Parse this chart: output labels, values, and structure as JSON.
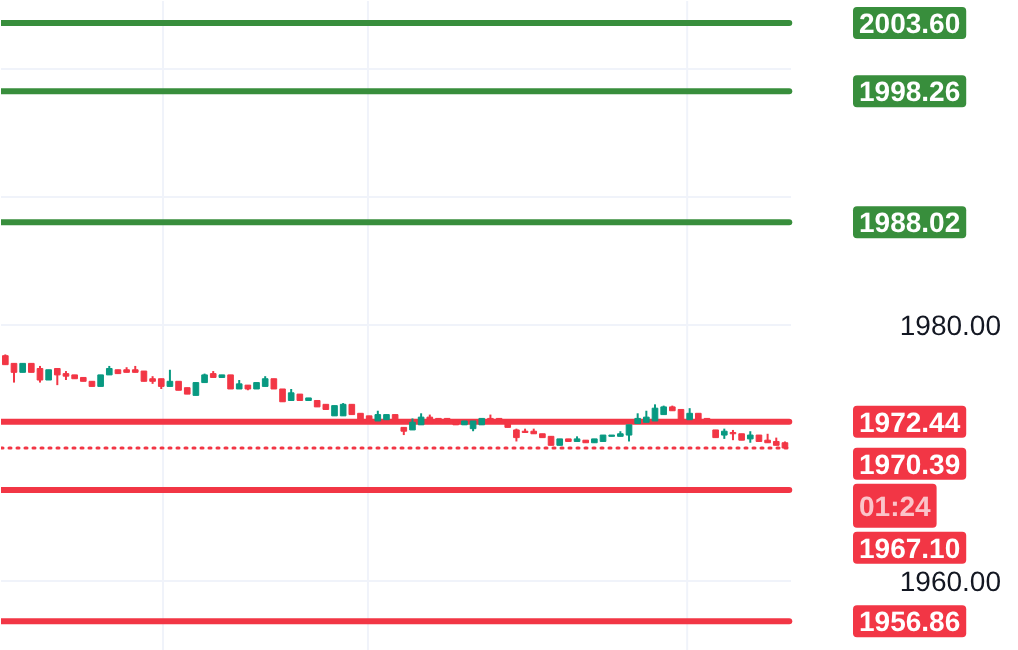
{
  "chart_data": {
    "type": "candlestick",
    "categories": [
      null,
      null,
      null,
      null,
      null,
      null,
      null,
      null,
      null,
      null,
      null,
      null,
      null,
      null,
      null,
      null,
      null,
      null,
      null,
      null,
      null,
      null,
      null,
      null,
      null,
      null,
      null,
      null,
      null,
      null,
      null,
      null,
      null,
      null,
      null,
      null,
      null,
      null,
      null,
      null,
      null,
      null,
      null,
      null,
      null,
      null,
      null,
      null,
      null,
      null,
      null,
      null,
      null,
      null,
      null,
      null,
      null,
      null,
      null,
      null,
      null,
      null,
      null,
      null,
      null,
      null,
      null,
      null,
      null,
      null,
      null,
      null,
      null,
      null,
      null,
      null,
      null,
      null,
      null,
      null,
      null,
      null,
      null,
      null,
      null,
      null,
      null,
      null,
      null,
      null,
      null
    ],
    "ohlc": [
      [
        1977.6,
        1977.7,
        1976.9,
        1976.9
      ],
      [
        1977.0,
        1977.0,
        1975.5,
        1976.3
      ],
      [
        1976.3,
        1977.0,
        1976.3,
        1977.0
      ],
      [
        1977.0,
        1977.0,
        1976.3,
        1976.3
      ],
      [
        1976.6,
        1976.8,
        1975.5,
        1975.7
      ],
      [
        1975.7,
        1976.5,
        1975.7,
        1976.5
      ],
      [
        1976.6,
        1976.6,
        1975.3,
        1976.1
      ],
      [
        1976.2,
        1976.4,
        1975.7,
        1976.0
      ],
      [
        1976.1,
        1976.1,
        1975.8,
        1975.8
      ],
      [
        1975.9,
        1975.9,
        1975.6,
        1975.6
      ],
      [
        1975.6,
        1975.6,
        1975.2,
        1975.2
      ],
      [
        1975.2,
        1976.1,
        1975.2,
        1976.1
      ],
      [
        1976.1,
        1976.8,
        1976.1,
        1976.6
      ],
      [
        1976.5,
        1976.5,
        1976.2,
        1976.2
      ],
      [
        1976.5,
        1976.7,
        1976.3,
        1976.3
      ],
      [
        1976.5,
        1976.8,
        1976.3,
        1976.3
      ],
      [
        1976.4,
        1976.4,
        1975.6,
        1975.6
      ],
      [
        1975.8,
        1976.0,
        1975.4,
        1975.6
      ],
      [
        1975.8,
        1975.8,
        1975.0,
        1975.2
      ],
      [
        1975.2,
        1976.5,
        1975.2,
        1975.6
      ],
      [
        1975.6,
        1975.6,
        1974.9,
        1974.9
      ],
      [
        1975.1,
        1975.1,
        1974.6,
        1974.6
      ],
      [
        1974.5,
        1975.5,
        1974.5,
        1975.5
      ],
      [
        1975.5,
        1976.2,
        1975.5,
        1976.1
      ],
      [
        1976.2,
        1976.4,
        1975.9,
        1975.9
      ],
      [
        1975.9,
        1976.1,
        1975.9,
        1976.1
      ],
      [
        1976.1,
        1976.1,
        1975.0,
        1975.0
      ],
      [
        1975.0,
        1975.7,
        1975.0,
        1975.4
      ],
      [
        1975.3,
        1975.3,
        1974.9,
        1975.0
      ],
      [
        1975.0,
        1975.5,
        1975.0,
        1975.5
      ],
      [
        1975.2,
        1976.0,
        1975.2,
        1975.8
      ],
      [
        1975.8,
        1975.8,
        1975.0,
        1975.0
      ],
      [
        1975.0,
        1975.0,
        1974.0,
        1974.0
      ],
      [
        1974.1,
        1975.0,
        1974.1,
        1974.7
      ],
      [
        1974.6,
        1974.6,
        1974.1,
        1974.1
      ],
      [
        1974.1,
        1974.3,
        1974.1,
        1974.3
      ],
      [
        1974.1,
        1974.1,
        1973.6,
        1973.6
      ],
      [
        1973.8,
        1973.8,
        1973.4,
        1973.4
      ],
      [
        1972.9,
        1973.7,
        1972.9,
        1973.7
      ],
      [
        1972.9,
        1973.9,
        1972.9,
        1973.8
      ],
      [
        1973.8,
        1973.8,
        1973.0,
        1973.0
      ],
      [
        1973.1,
        1973.1,
        1972.5,
        1972.5
      ],
      [
        1972.9,
        1972.9,
        1972.5,
        1972.5
      ],
      [
        1972.5,
        1973.3,
        1972.5,
        1973.0
      ],
      [
        1972.6,
        1973.0,
        1972.6,
        1973.0
      ],
      [
        1973.0,
        1973.0,
        1972.5,
        1972.5
      ],
      [
        1972.0,
        1972.0,
        1971.4,
        1971.7
      ],
      [
        1971.8,
        1972.7,
        1971.8,
        1972.4
      ],
      [
        1972.2,
        1973.1,
        1972.2,
        1972.8
      ],
      [
        1972.8,
        1973.0,
        1972.3,
        1972.3
      ],
      [
        1972.7,
        1972.7,
        1972.5,
        1972.5
      ],
      [
        1972.7,
        1972.7,
        1972.5,
        1972.5
      ],
      [
        1972.5,
        1972.5,
        1972.2,
        1972.2
      ],
      [
        1972.2,
        1972.5,
        1972.2,
        1972.5
      ],
      [
        1971.9,
        1972.5,
        1971.7,
        1972.5
      ],
      [
        1972.2,
        1972.7,
        1972.2,
        1972.7
      ],
      [
        1972.7,
        1973.0,
        1972.5,
        1972.5
      ],
      [
        1972.7,
        1972.7,
        1972.5,
        1972.5
      ],
      [
        1972.5,
        1972.5,
        1972.0,
        1972.0
      ],
      [
        1971.8,
        1971.9,
        1970.9,
        1971.2
      ],
      [
        1971.7,
        1971.9,
        1971.6,
        1971.6
      ],
      [
        1971.7,
        1971.9,
        1971.5,
        1971.5
      ],
      [
        1971.5,
        1971.5,
        1971.2,
        1971.2
      ],
      [
        1971.3,
        1971.3,
        1970.6,
        1970.6
      ],
      [
        1970.6,
        1971.1,
        1970.6,
        1971.1
      ],
      [
        1971.1,
        1971.1,
        1970.9,
        1970.9
      ],
      [
        1970.9,
        1971.3,
        1970.9,
        1971.1
      ],
      [
        1971.0,
        1971.0,
        1970.8,
        1970.8
      ],
      [
        1970.8,
        1971.1,
        1970.8,
        1971.1
      ],
      [
        1970.9,
        1971.4,
        1970.9,
        1971.4
      ],
      [
        1971.3,
        1971.4,
        1971.3,
        1971.4
      ],
      [
        1971.3,
        1971.7,
        1971.3,
        1971.5
      ],
      [
        1971.4,
        1972.2,
        1970.9,
        1972.2
      ],
      [
        1972.3,
        1973.1,
        1972.3,
        1972.7
      ],
      [
        1972.4,
        1973.3,
        1972.4,
        1972.8
      ],
      [
        1972.5,
        1973.8,
        1972.5,
        1973.5
      ],
      [
        1973.0,
        1973.7,
        1973.0,
        1973.6
      ],
      [
        1973.6,
        1973.7,
        1973.3,
        1973.3
      ],
      [
        1973.4,
        1973.4,
        1972.6,
        1972.6
      ],
      [
        1972.6,
        1973.5,
        1972.6,
        1973.1
      ],
      [
        1973.1,
        1973.1,
        1972.5,
        1972.5
      ],
      [
        1972.7,
        1972.7,
        1972.4,
        1972.4
      ],
      [
        1971.8,
        1971.8,
        1971.2,
        1971.2
      ],
      [
        1971.4,
        1971.9,
        1971.1,
        1971.7
      ],
      [
        1971.6,
        1971.8,
        1971.0,
        1971.5
      ],
      [
        1971.5,
        1971.5,
        1971.0,
        1971.0
      ],
      [
        1971.1,
        1971.7,
        1970.8,
        1971.4
      ],
      [
        1971.4,
        1971.4,
        1970.9,
        1970.9
      ],
      [
        1971.0,
        1971.5,
        1970.8,
        1970.8
      ],
      [
        1970.9,
        1971.2,
        1970.6,
        1970.6
      ],
      [
        1970.8,
        1970.9,
        1970.39,
        1970.39
      ]
    ],
    "colors": [
      "#f23645",
      "#f23645",
      "#089981",
      "#f23645",
      "#f23645",
      "#089981",
      "#f23645",
      "#f23645",
      "#f23645",
      "#f23645",
      "#f23645",
      "#089981",
      "#089981",
      "#f23645",
      "#f23645",
      "#f23645",
      "#f23645",
      "#f23645",
      "#f23645",
      "#089981",
      "#f23645",
      "#f23645",
      "#089981",
      "#089981",
      "#f23645",
      "#089981",
      "#f23645",
      "#089981",
      "#f23645",
      "#089981",
      "#089981",
      "#f23645",
      "#f23645",
      "#089981",
      "#f23645",
      "#089981",
      "#f23645",
      "#f23645",
      "#089981",
      "#089981",
      "#f23645",
      "#f23645",
      "#f23645",
      "#089981",
      "#089981",
      "#f23645",
      "#f23645",
      "#089981",
      "#089981",
      "#f23645",
      "#f23645",
      "#f23645",
      "#f23645",
      "#089981",
      "#089981",
      "#089981",
      "#f23645",
      "#f23645",
      "#f23645",
      "#f23645",
      "#f23645",
      "#f23645",
      "#f23645",
      "#f23645",
      "#089981",
      "#f23645",
      "#089981",
      "#f23645",
      "#089981",
      "#089981",
      "#089981",
      "#089981",
      "#089981",
      "#089981",
      "#089981",
      "#089981",
      "#089981",
      "#f23645",
      "#f23645",
      "#089981",
      "#f23645",
      "#f23645",
      "#f23645",
      "#089981",
      "#f23645",
      "#f23645",
      "#089981",
      "#f23645",
      "#f23645",
      "#f23645",
      "#f23645"
    ],
    "ylim": [
      1954.53,
      2005.31
    ],
    "yticks": [
      {
        "value": 1960,
        "label": "1960.00"
      },
      {
        "value": 1980,
        "label": "1980.00"
      },
      {
        "value": 1990,
        "label": null
      },
      {
        "value": 2000,
        "label": null
      }
    ],
    "grid": true,
    "tick_labels": "y",
    "ref_lines": [
      {
        "axis": "y",
        "value": 2003.6,
        "label": "2003.60",
        "color": "#388e3c",
        "line_style": "solid"
      },
      {
        "axis": "y",
        "value": 1998.26,
        "label": "1998.26",
        "color": "#388e3c",
        "line_style": "solid"
      },
      {
        "axis": "y",
        "value": 1988.02,
        "label": "1988.02",
        "color": "#388e3c",
        "line_style": "solid"
      },
      {
        "axis": "y",
        "value": 1972.44,
        "label": "1972.44",
        "color": "#f23645",
        "line_style": "solid"
      },
      {
        "axis": "y",
        "value": 1970.39,
        "label": "1970.39",
        "color": "#f23645",
        "line_style": "dotted"
      },
      {
        "axis": "y",
        "value": 1967.1,
        "label": "1967.10",
        "color": "#f23645",
        "line_style": "solid"
      },
      {
        "axis": "y",
        "value": 1956.86,
        "label": "1956.86",
        "color": "#f23645",
        "line_style": "solid"
      }
    ],
    "annotations": [
      "01:24"
    ]
  }
}
